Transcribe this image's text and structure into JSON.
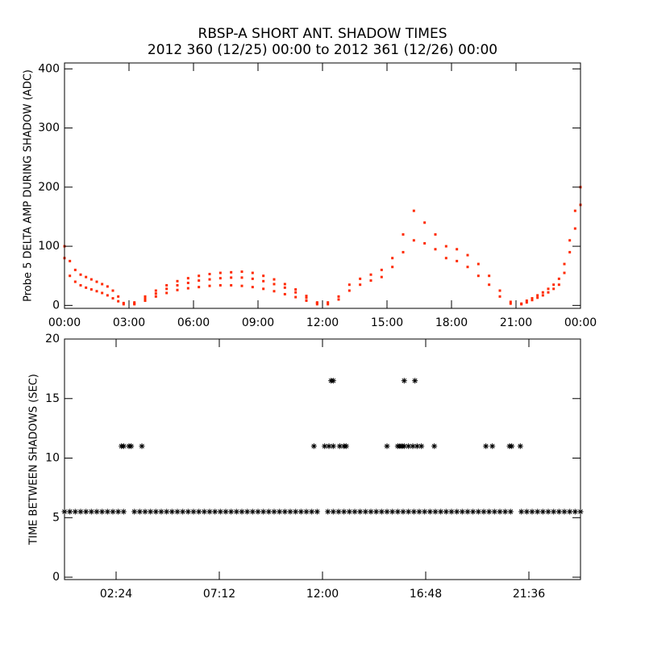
{
  "chart_data": [
    {
      "type": "scatter",
      "marker": "dot",
      "title": "RBSP-A SHORT ANT. SHADOW TIMES",
      "subtitle": "2012 360 (12/25) 00:00 to 2012 361 (12/26) 00:00",
      "y_label": "Probe 5 DELTA AMP DURING SHADOW (ADC)",
      "xlim": [
        0,
        24
      ],
      "ylim": [
        -5,
        410
      ],
      "xticks": [
        {
          "value": 0,
          "label": "00:00"
        },
        {
          "value": 3,
          "label": "03:00"
        },
        {
          "value": 6,
          "label": "06:00"
        },
        {
          "value": 9,
          "label": "09:00"
        },
        {
          "value": 12,
          "label": "12:00"
        },
        {
          "value": 15,
          "label": "15:00"
        },
        {
          "value": 18,
          "label": "18:00"
        },
        {
          "value": 21,
          "label": "21:00"
        },
        {
          "value": 24,
          "label": "00:00"
        }
      ],
      "yticks": [
        0,
        100,
        200,
        300,
        400
      ],
      "series": [
        {
          "color": "#ff2a00",
          "x": [
            0,
            0.25,
            0.5,
            0.75,
            1,
            1.25,
            1.5,
            1.75,
            2,
            2.25,
            2.5,
            2.75,
            0,
            0.25,
            0.5,
            0.75,
            1,
            1.25,
            1.5,
            1.75,
            2,
            2.25,
            2.5,
            2.75,
            3.25,
            3.75,
            4.25,
            4.75,
            5.25,
            5.75,
            6.25,
            6.75,
            7.25,
            7.75,
            8.25,
            8.75,
            9.25,
            9.75,
            10.25,
            10.75,
            11.25,
            11.75,
            3.25,
            3.75,
            4.25,
            4.75,
            5.25,
            5.75,
            6.25,
            6.75,
            7.25,
            7.75,
            8.25,
            8.75,
            9.25,
            9.75,
            10.25,
            10.75,
            11.25,
            11.75,
            3.25,
            3.75,
            4.25,
            4.75,
            5.25,
            5.75,
            6.25,
            6.75,
            7.25,
            7.75,
            8.25,
            8.75,
            9.25,
            9.75,
            10.25,
            10.75,
            11.25,
            11.75,
            12.25,
            12.75,
            13.25,
            13.75,
            14.25,
            14.75,
            15.25,
            15.75,
            16.25,
            16.75,
            17.25,
            17.75,
            18.25,
            18.75,
            19.25,
            19.75,
            20.25,
            20.75,
            12.25,
            12.75,
            13.25,
            13.75,
            14.25,
            14.75,
            15.25,
            15.75,
            16.25,
            16.75,
            17.25,
            17.75,
            18.25,
            18.75,
            19.25,
            19.75,
            20.25,
            20.75,
            21.25,
            21.5,
            21.75,
            22,
            22.25,
            22.5,
            22.75,
            23,
            23.25,
            23.5,
            23.75,
            24,
            21.25,
            21.5,
            21.75,
            22,
            22.25,
            22.5,
            22.75,
            23,
            23.25,
            23.5,
            23.75,
            24
          ],
          "values": [
            100,
            75,
            60,
            52,
            48,
            44,
            40,
            36,
            32,
            25,
            15,
            4,
            80,
            50,
            40,
            34,
            30,
            27,
            24,
            21,
            17,
            12,
            7,
            2,
            5,
            15,
            25,
            34,
            41,
            46,
            50,
            53,
            55,
            56,
            57,
            55,
            50,
            44,
            36,
            27,
            16,
            5,
            3,
            12,
            20,
            28,
            34,
            38,
            42,
            44,
            46,
            47,
            47,
            45,
            41,
            36,
            30,
            22,
            13,
            4,
            2,
            8,
            15,
            21,
            26,
            29,
            31,
            33,
            34,
            34,
            33,
            31,
            28,
            24,
            19,
            14,
            8,
            2,
            5,
            15,
            35,
            45,
            52,
            60,
            80,
            120,
            160,
            140,
            120,
            100,
            95,
            85,
            70,
            50,
            25,
            6,
            2,
            10,
            25,
            35,
            42,
            48,
            65,
            90,
            110,
            105,
            95,
            80,
            75,
            65,
            50,
            35,
            15,
            3,
            3,
            8,
            12,
            17,
            22,
            28,
            35,
            45,
            70,
            110,
            160,
            200,
            2,
            5,
            9,
            13,
            17,
            22,
            28,
            35,
            55,
            90,
            130,
            170
          ]
        }
      ]
    },
    {
      "type": "scatter",
      "marker": "asterisk",
      "y_label": "TIME BETWEEN SHADOWS (SEC)",
      "xlim": [
        0,
        24
      ],
      "ylim": [
        -0.2,
        20
      ],
      "xticks": [
        {
          "value": 2.4,
          "label": "02:24"
        },
        {
          "value": 7.2,
          "label": "07:12"
        },
        {
          "value": 12,
          "label": "12:00"
        },
        {
          "value": 16.8,
          "label": "16:48"
        },
        {
          "value": 21.6,
          "label": "21:36"
        }
      ],
      "yticks": [
        0,
        5,
        10,
        15,
        20
      ],
      "series": [
        {
          "color": "#000000",
          "x": [
            0,
            0.25,
            0.5,
            0.75,
            1,
            1.25,
            1.5,
            1.75,
            2,
            2.25,
            2.5,
            2.75,
            3.25,
            3.5,
            3.75,
            4,
            4.25,
            4.5,
            4.75,
            5,
            5.25,
            5.5,
            5.75,
            6,
            6.25,
            6.5,
            6.75,
            7,
            7.25,
            7.5,
            7.75,
            8,
            8.25,
            8.5,
            8.75,
            9,
            9.25,
            9.5,
            9.75,
            10,
            10.25,
            10.5,
            10.75,
            11,
            11.25,
            11.5,
            11.75,
            12.25,
            12.5,
            12.75,
            13,
            13.25,
            13.5,
            13.75,
            14,
            14.25,
            14.5,
            14.75,
            15,
            15.25,
            15.5,
            15.75,
            16,
            16.25,
            16.5,
            16.75,
            17,
            17.25,
            17.5,
            17.75,
            18,
            18.25,
            18.5,
            18.75,
            19,
            19.25,
            19.5,
            19.75,
            20,
            20.25,
            20.5,
            20.75,
            21.25,
            21.5,
            21.75,
            22,
            22.25,
            22.5,
            22.75,
            23,
            23.25,
            23.5,
            23.75,
            24,
            2.65,
            2.75,
            3.0,
            3.1,
            3.6,
            11.6,
            12.1,
            12.3,
            12.5,
            12.8,
            13.0,
            13.1,
            15.0,
            15.5,
            15.6,
            15.7,
            15.8,
            16.0,
            16.2,
            16.4,
            16.6,
            17.2,
            19.6,
            19.9,
            20.7,
            20.8,
            21.2,
            12.4,
            12.5,
            15.8,
            16.3
          ],
          "values": [
            5.5,
            5.5,
            5.5,
            5.5,
            5.5,
            5.5,
            5.5,
            5.5,
            5.5,
            5.5,
            5.5,
            5.5,
            5.5,
            5.5,
            5.5,
            5.5,
            5.5,
            5.5,
            5.5,
            5.5,
            5.5,
            5.5,
            5.5,
            5.5,
            5.5,
            5.5,
            5.5,
            5.5,
            5.5,
            5.5,
            5.5,
            5.5,
            5.5,
            5.5,
            5.5,
            5.5,
            5.5,
            5.5,
            5.5,
            5.5,
            5.5,
            5.5,
            5.5,
            5.5,
            5.5,
            5.5,
            5.5,
            5.5,
            5.5,
            5.5,
            5.5,
            5.5,
            5.5,
            5.5,
            5.5,
            5.5,
            5.5,
            5.5,
            5.5,
            5.5,
            5.5,
            5.5,
            5.5,
            5.5,
            5.5,
            5.5,
            5.5,
            5.5,
            5.5,
            5.5,
            5.5,
            5.5,
            5.5,
            5.5,
            5.5,
            5.5,
            5.5,
            5.5,
            5.5,
            5.5,
            5.5,
            5.5,
            5.5,
            5.5,
            5.5,
            5.5,
            5.5,
            5.5,
            5.5,
            5.5,
            5.5,
            5.5,
            5.5,
            5.5,
            11,
            11,
            11,
            11,
            11,
            11,
            11,
            11,
            11,
            11,
            11,
            11,
            11,
            11,
            11,
            11,
            11,
            11,
            11,
            11,
            11,
            11,
            11,
            11,
            11,
            11,
            11,
            16.5,
            16.5,
            16.5,
            16.5
          ]
        }
      ]
    }
  ]
}
